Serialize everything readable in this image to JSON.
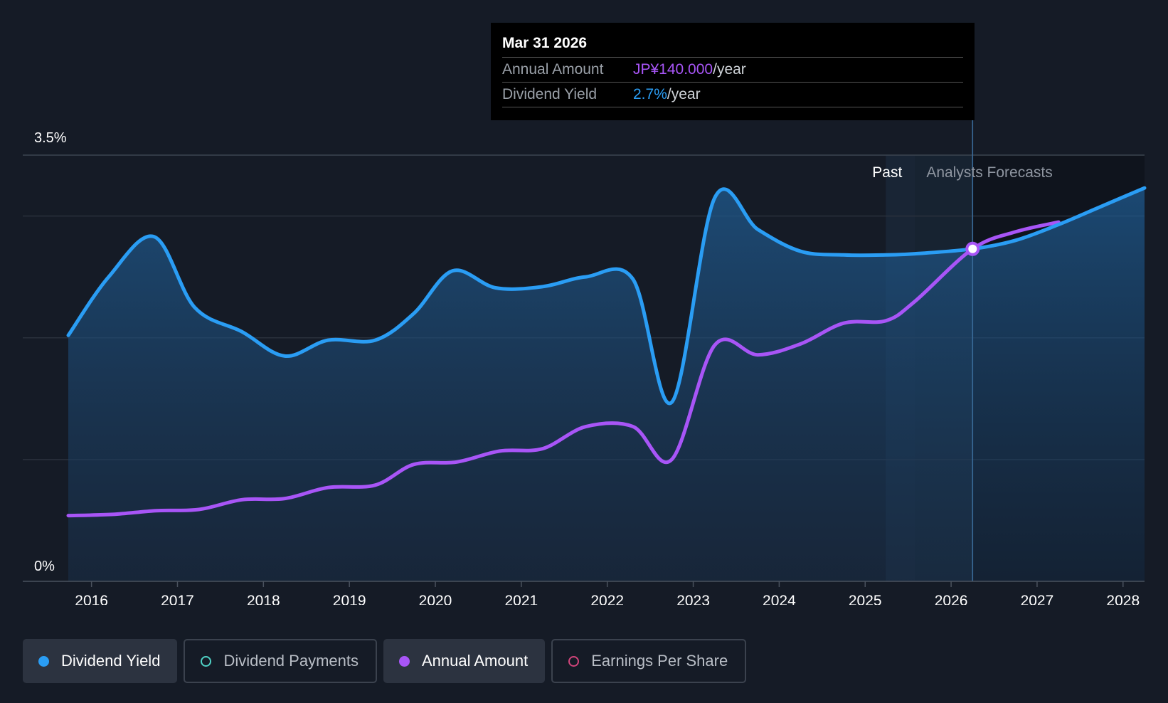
{
  "tooltip": {
    "date": "Mar 31 2026",
    "annual_label": "Annual Amount",
    "annual_value": "JP¥140.000",
    "annual_unit": "/year",
    "yield_label": "Dividend Yield",
    "yield_value": "2.7%",
    "yield_unit": "/year"
  },
  "regions": {
    "past": "Past",
    "forecast": "Analysts Forecasts"
  },
  "legend": [
    {
      "label": "Dividend Yield",
      "color": "#2a9df4",
      "active": true,
      "filled": true
    },
    {
      "label": "Dividend Payments",
      "color": "#4fd1c5",
      "active": false,
      "filled": false
    },
    {
      "label": "Annual Amount",
      "color": "#a855f7",
      "active": true,
      "filled": true
    },
    {
      "label": "Earnings Per Share",
      "color": "#d0447a",
      "active": false,
      "filled": false
    }
  ],
  "colors": {
    "background": "#151b26",
    "yield": "#2a9df4",
    "amount": "#a855f7",
    "grid": "#2a313c"
  },
  "chart_data": {
    "type": "line",
    "title": "",
    "xlabel": "",
    "ylabel": "",
    "ylim": [
      0,
      3.5
    ],
    "xlim": [
      2015.73,
      2028.25
    ],
    "y_tick_labels": [
      {
        "value": 3.5,
        "label": "3.5%"
      },
      {
        "value": 0,
        "label": "0%"
      }
    ],
    "gridlines": [
      0,
      1,
      2,
      3,
      3.5
    ],
    "x_ticks": [
      2016,
      2017,
      2018,
      2019,
      2020,
      2021,
      2022,
      2023,
      2024,
      2025,
      2026,
      2027,
      2028
    ],
    "past_end": 2025.24,
    "forecast_start": 2025.58,
    "tooltip_x": 2026.25,
    "series": [
      {
        "name": "Dividend Yield",
        "unit": "%",
        "color": "#2a9df4",
        "points": [
          [
            2015.73,
            2.02
          ],
          [
            2016.2,
            2.5
          ],
          [
            2016.73,
            2.83
          ],
          [
            2017.2,
            2.25
          ],
          [
            2017.75,
            2.05
          ],
          [
            2018.25,
            1.85
          ],
          [
            2018.75,
            1.98
          ],
          [
            2019.3,
            1.98
          ],
          [
            2019.75,
            2.2
          ],
          [
            2020.2,
            2.55
          ],
          [
            2020.7,
            2.41
          ],
          [
            2021.25,
            2.42
          ],
          [
            2021.75,
            2.5
          ],
          [
            2022.3,
            2.48
          ],
          [
            2022.75,
            1.47
          ],
          [
            2023.25,
            3.15
          ],
          [
            2023.75,
            2.89
          ],
          [
            2024.25,
            2.71
          ],
          [
            2024.75,
            2.68
          ],
          [
            2025.24,
            2.68
          ],
          [
            2025.58,
            2.69
          ],
          [
            2026.25,
            2.73
          ],
          [
            2026.75,
            2.8
          ],
          [
            2027.25,
            2.93
          ],
          [
            2027.75,
            3.08
          ],
          [
            2028.25,
            3.23
          ]
        ]
      },
      {
        "name": "Annual Amount",
        "unit": "relative",
        "color": "#a855f7",
        "points": [
          [
            2015.73,
            0.54
          ],
          [
            2016.25,
            0.55
          ],
          [
            2016.75,
            0.58
          ],
          [
            2017.25,
            0.59
          ],
          [
            2017.75,
            0.67
          ],
          [
            2018.25,
            0.68
          ],
          [
            2018.75,
            0.77
          ],
          [
            2019.3,
            0.79
          ],
          [
            2019.75,
            0.96
          ],
          [
            2020.25,
            0.98
          ],
          [
            2020.75,
            1.07
          ],
          [
            2021.25,
            1.09
          ],
          [
            2021.75,
            1.27
          ],
          [
            2022.3,
            1.27
          ],
          [
            2022.75,
            1.0
          ],
          [
            2023.25,
            1.94
          ],
          [
            2023.75,
            1.86
          ],
          [
            2024.25,
            1.95
          ],
          [
            2024.75,
            2.12
          ],
          [
            2025.24,
            2.14
          ],
          [
            2025.58,
            2.3
          ],
          [
            2026.25,
            2.73
          ],
          [
            2026.75,
            2.87
          ],
          [
            2027.25,
            2.95
          ]
        ]
      }
    ]
  }
}
